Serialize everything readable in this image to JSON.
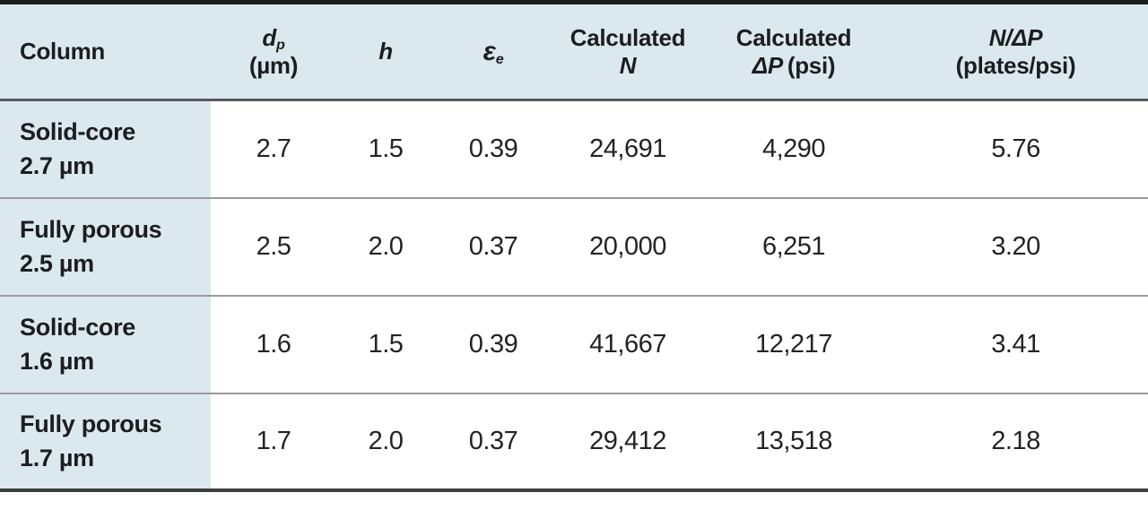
{
  "colors": {
    "header_bg": "#dbe9ef",
    "label_col_bg": "#dbe9ef",
    "top_border": "#1c1c1c",
    "header_rule": "#58595b",
    "row_rule": "#9b9b9b",
    "bottom_border": "#3f3f3f",
    "text": "#1d1d1f"
  },
  "table": {
    "header": {
      "column": "Column",
      "dp": {
        "symbol": "d",
        "sub": "p",
        "unit": "(µm)"
      },
      "h": "h",
      "epsilon": {
        "symbol": "ε",
        "sub": "e"
      },
      "calc_n": {
        "line1": "Calculated",
        "line2": "N"
      },
      "calc_dp": {
        "line1": "Calculated",
        "symbol": "ΔP",
        "unit": "(psi)"
      },
      "n_per_dp": {
        "line1": "N/ΔP",
        "line2": "(plates/psi)"
      }
    },
    "rows": [
      {
        "label1": "Solid-core",
        "label2": "2.7 µm",
        "dp": "2.7",
        "h": "1.5",
        "epsilon": "0.39",
        "n": "24,691",
        "delta_p": "4,290",
        "n_per_dp": "5.76"
      },
      {
        "label1": "Fully porous",
        "label2": "2.5 µm",
        "dp": "2.5",
        "h": "2.0",
        "epsilon": "0.37",
        "n": "20,000",
        "delta_p": "6,251",
        "n_per_dp": "3.20"
      },
      {
        "label1": "Solid-core",
        "label2": "1.6 µm",
        "dp": "1.6",
        "h": "1.5",
        "epsilon": "0.39",
        "n": "41,667",
        "delta_p": "12,217",
        "n_per_dp": "3.41"
      },
      {
        "label1": "Fully porous",
        "label2": "1.7 µm",
        "dp": "1.7",
        "h": "2.0",
        "epsilon": "0.37",
        "n": "29,412",
        "delta_p": "13,518",
        "n_per_dp": "2.18"
      }
    ]
  },
  "chart_data": {
    "type": "table",
    "columns": [
      "Column",
      "dp (µm)",
      "h",
      "εe",
      "Calculated N",
      "Calculated ΔP (psi)",
      "N/ΔP (plates/psi)"
    ],
    "rows": [
      [
        "Solid-core 2.7 µm",
        2.7,
        1.5,
        0.39,
        24691,
        4290,
        5.76
      ],
      [
        "Fully porous 2.5 µm",
        2.5,
        2.0,
        0.37,
        20000,
        6251,
        3.2
      ],
      [
        "Solid-core 1.6 µm",
        1.6,
        1.5,
        0.39,
        41667,
        12217,
        3.41
      ],
      [
        "Fully porous 1.7 µm",
        1.7,
        2.0,
        0.37,
        29412,
        13518,
        2.18
      ]
    ]
  }
}
